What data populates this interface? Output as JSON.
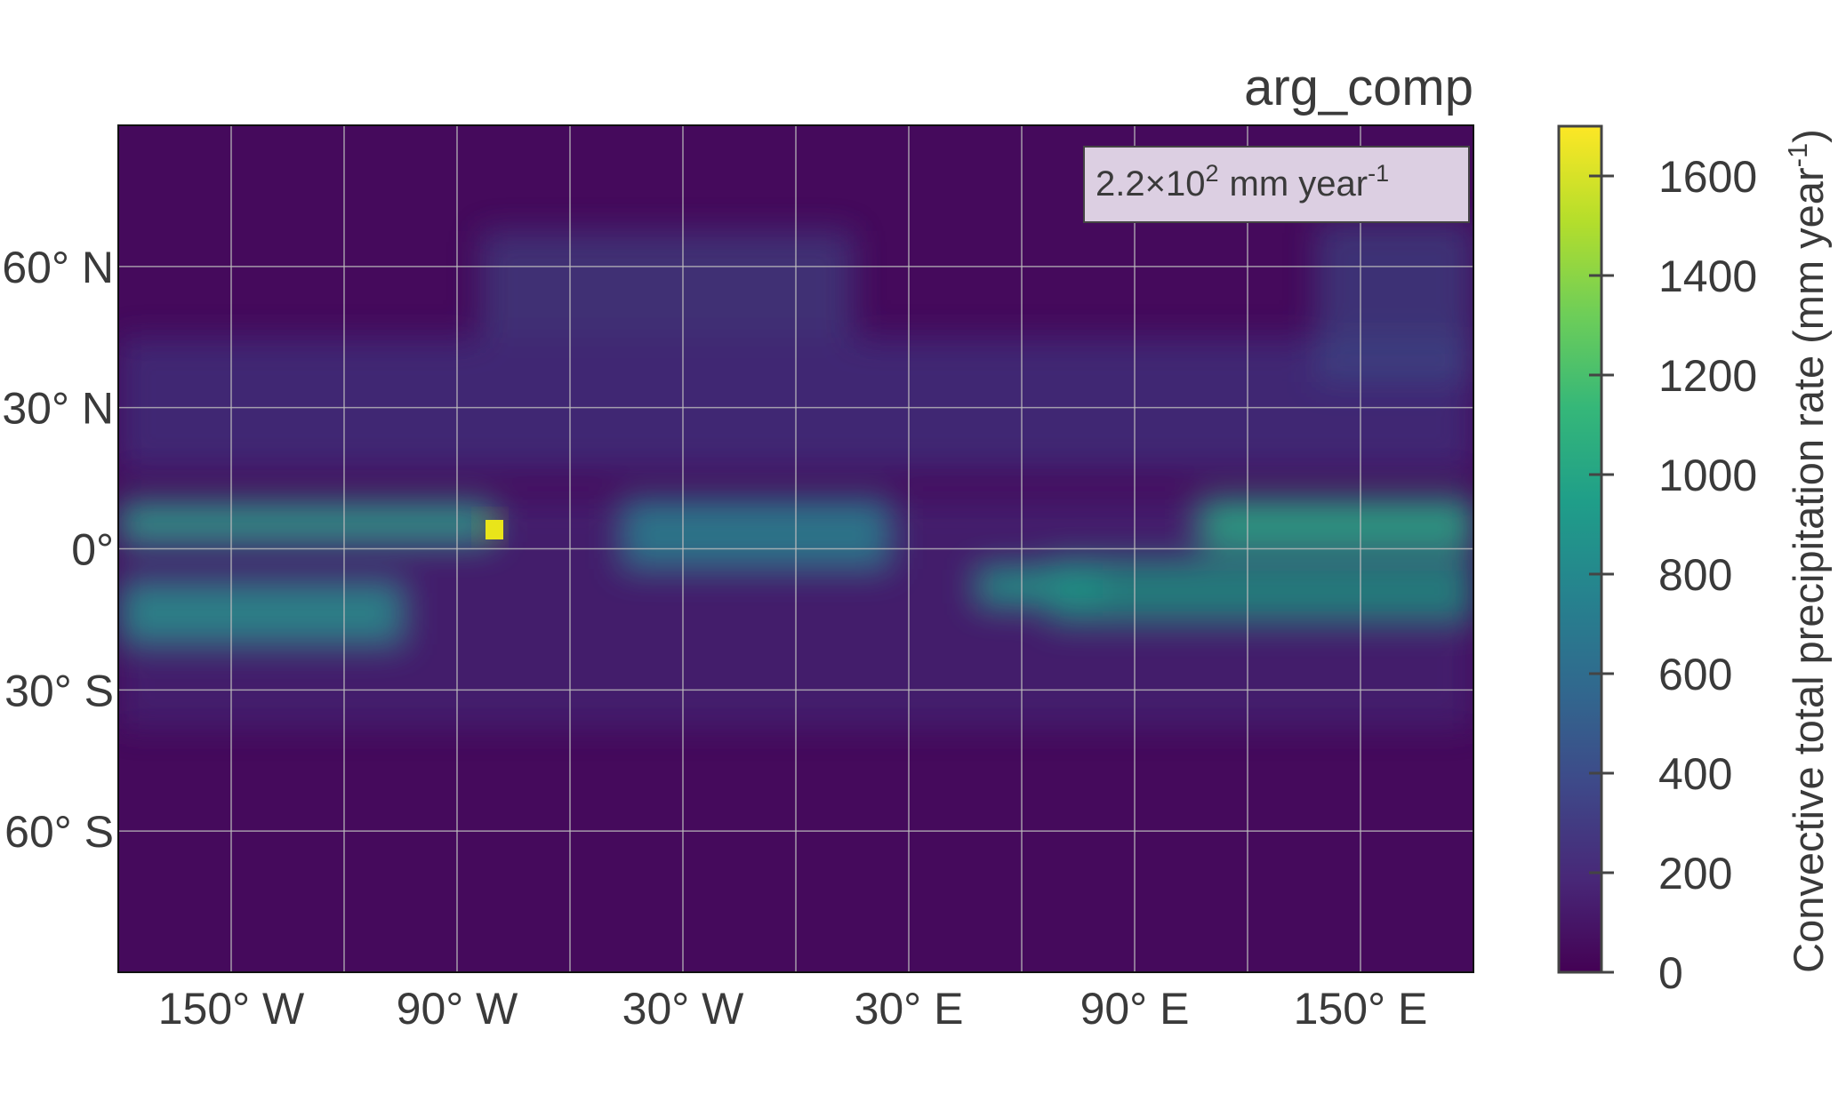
{
  "chart_data": {
    "type": "map",
    "title": "arg_comp",
    "annotation": {
      "text": "2.2×10",
      "exponent": "2",
      "unit": "mm year",
      "unit_exponent": "-1"
    },
    "xlim": [
      -180,
      180
    ],
    "ylim": [
      -90,
      90
    ],
    "xticks": [
      {
        "value": -150,
        "label": "150° W"
      },
      {
        "value": -90,
        "label": "90° W"
      },
      {
        "value": -30,
        "label": "30° W"
      },
      {
        "value": 30,
        "label": "30° E"
      },
      {
        "value": 90,
        "label": "90° E"
      },
      {
        "value": 150,
        "label": "150° E"
      }
    ],
    "xminor_grid": [
      -120,
      -60,
      0,
      60,
      120
    ],
    "yticks": [
      {
        "value": 60,
        "label": "60° N"
      },
      {
        "value": 30,
        "label": "30° N"
      },
      {
        "value": 0,
        "label": "0°"
      },
      {
        "value": -30,
        "label": "30° S"
      },
      {
        "value": -60,
        "label": "60° S"
      }
    ],
    "grid": true,
    "colorbar": {
      "label": "Convective total precipitation rate (mm year",
      "label_exponent": "-1",
      "label_end": ")",
      "clim": [
        0,
        1700
      ],
      "ticks": [
        0,
        200,
        400,
        600,
        800,
        1000,
        1200,
        1400,
        1600
      ],
      "colormap": "viridis"
    }
  }
}
